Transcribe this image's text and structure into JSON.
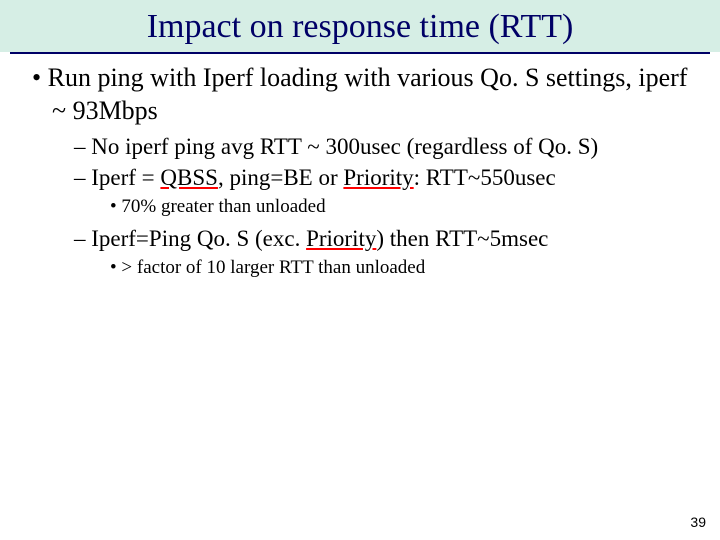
{
  "title_bg": "#d6eee5",
  "title_color": "#000066",
  "underline_color": "#ff0000",
  "title": "Impact on response time (RTT)",
  "b1": "Run ping with Iperf loading with various Qo. S settings, iperf ~ 93Mbps",
  "b2a": "No iperf ping avg RTT ~ 300usec (regardless of Qo. S)",
  "b2b_pre": "Iperf = ",
  "b2b_qbss": "QBSS",
  "b2b_mid": ", ping=BE or ",
  "b2b_pri": "Priority",
  "b2b_post": ": RTT~550usec",
  "b3a": "70% greater than unloaded",
  "b2c_pre": "Iperf=Ping Qo. S (exc. ",
  "b2c_pri": "Priority",
  "b2c_post": ") then RTT~5msec",
  "b3b": "> factor of 10 larger RTT than unloaded",
  "page_number": "39"
}
